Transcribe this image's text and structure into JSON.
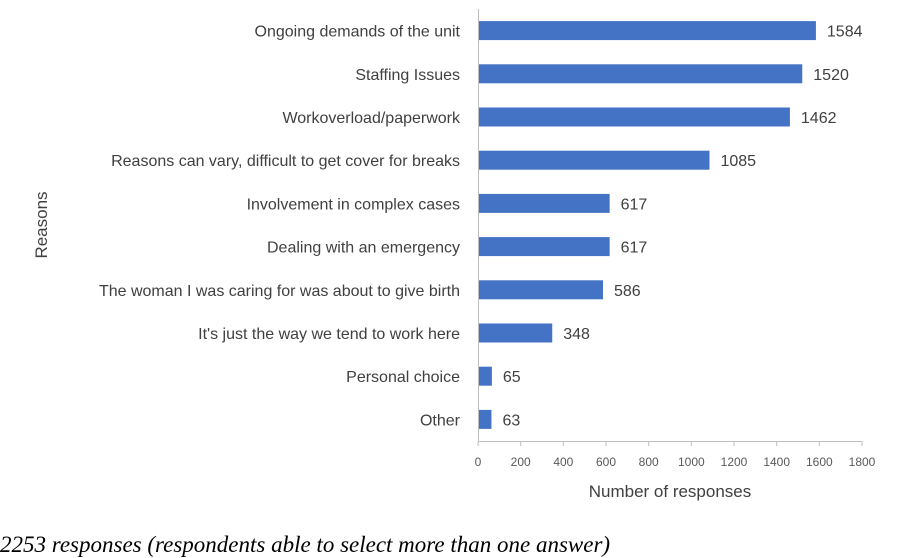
{
  "chart_data": {
    "type": "bar",
    "orientation": "horizontal",
    "categories": [
      "Ongoing demands of the unit",
      "Staffing Issues",
      "Workoverload/paperwork",
      "Reasons can vary, difficult to get cover for breaks",
      "Involvement in complex cases",
      "Dealing with an emergency",
      "The woman I was caring for was about to give birth",
      "It's just the way we tend to work here",
      "Personal choice",
      "Other"
    ],
    "values": [
      1584,
      1520,
      1462,
      1085,
      617,
      617,
      586,
      348,
      65,
      63
    ],
    "xlabel": "Number of responses",
    "ylabel": "Reasons",
    "xlim": [
      0,
      1800
    ],
    "xticks": [
      "0",
      "200",
      "400",
      "600",
      "800",
      "1000",
      "1200",
      "1400",
      "1600",
      "1800"
    ],
    "grid": false,
    "legend": "none",
    "bar_color": "#4472C4"
  },
  "footnote": "2253 responses (respondents able to select more than one answer)"
}
